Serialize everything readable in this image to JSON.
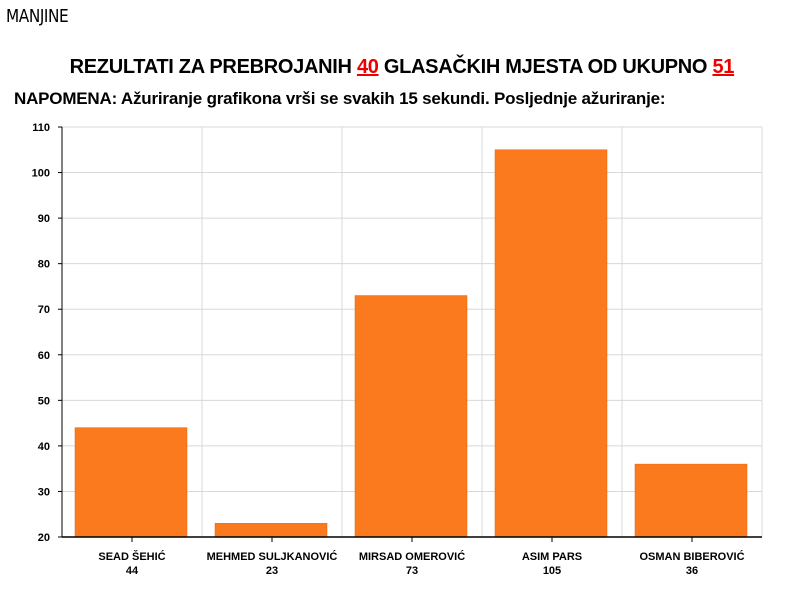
{
  "section": "MANJINE",
  "title": {
    "prefix": "REZULTATI ZA PREBROJANIH",
    "counted": "40",
    "middle": "GLASAČKIH MJESTA OD UKUPNO",
    "total": "51"
  },
  "note": "NAPOMENA: Ažuriranje grafikona vrši se svakih 15 sekundi. Posljednje ažuriranje:",
  "colors": {
    "bar": "#fc7a1e",
    "highlight": "#e00000"
  },
  "chart_data": {
    "type": "bar",
    "categories": [
      "SEAD ŠEHIĆ",
      "MEHMED SULJKANOVIĆ",
      "MIRSAD OMEROVIĆ",
      "ASIM PARS",
      "OSMAN BIBEROVIĆ"
    ],
    "values": [
      44,
      23,
      73,
      105,
      36
    ],
    "ylim": [
      20,
      110
    ],
    "yticks": [
      20,
      30,
      40,
      50,
      60,
      70,
      80,
      90,
      100,
      110
    ],
    "grid": true,
    "xlabel": "",
    "ylabel": ""
  }
}
